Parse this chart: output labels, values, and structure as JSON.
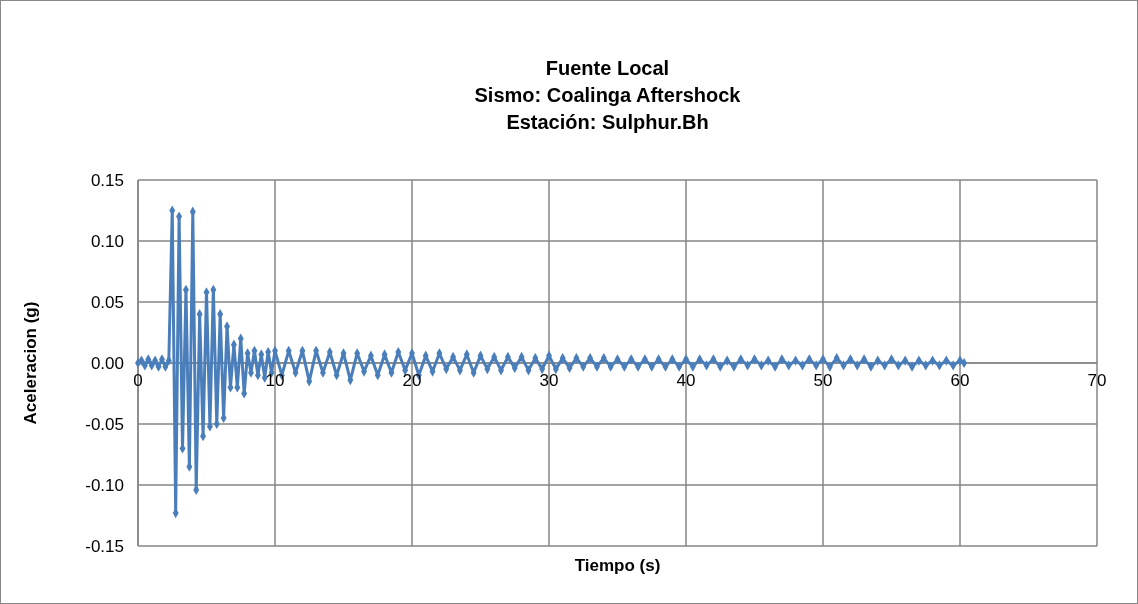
{
  "chart_data": {
    "type": "line",
    "title": "Fuente Local\nSismo: Coalinga Aftershock\nEstación: Sulphur.Bh",
    "xlabel": "Tiempo (s)",
    "ylabel": "Aceleracion (g)",
    "xlim": [
      0,
      70
    ],
    "xticks": [
      0,
      10,
      20,
      30,
      40,
      50,
      60,
      70
    ],
    "ylim": [
      -0.15,
      0.15
    ],
    "yticks": [
      {
        "value": -0.15,
        "label": "-0.15"
      },
      {
        "value": -0.1,
        "label": "-0.10"
      },
      {
        "value": -0.05,
        "label": "-0.05"
      },
      {
        "value": 0,
        "label": "0.00"
      },
      {
        "value": 0.05,
        "label": "0.05"
      },
      {
        "value": 0.1,
        "label": "0.10"
      },
      {
        "value": 0.15,
        "label": "0.15"
      }
    ],
    "grid": true,
    "marker": "diamond",
    "line_style": "solid",
    "series": [
      {
        "color": "#4a7ebb",
        "x": [
          0,
          0.25,
          0.5,
          0.75,
          1,
          1.25,
          1.5,
          1.75,
          2,
          2.25,
          2.5,
          2.75,
          3,
          3.25,
          3.5,
          3.75,
          4,
          4.25,
          4.5,
          4.75,
          5,
          5.25,
          5.5,
          5.75,
          6,
          6.25,
          6.5,
          6.75,
          7,
          7.25,
          7.5,
          7.75,
          8,
          8.25,
          8.5,
          8.75,
          9,
          9.25,
          9.5,
          9.75,
          10,
          10.5,
          11,
          11.5,
          12,
          12.5,
          13,
          13.5,
          14,
          14.5,
          15,
          15.5,
          16,
          16.5,
          17,
          17.5,
          18,
          18.5,
          19,
          19.5,
          20,
          20.5,
          21,
          21.5,
          22,
          22.5,
          23,
          23.5,
          24,
          24.5,
          25,
          25.5,
          26,
          26.5,
          27,
          27.5,
          28,
          28.5,
          29,
          29.5,
          30,
          30.5,
          31,
          31.5,
          32,
          32.5,
          33,
          33.5,
          34,
          34.5,
          35,
          35.5,
          36,
          36.5,
          37,
          37.5,
          38,
          38.5,
          39,
          39.5,
          40,
          40.5,
          41,
          41.5,
          42,
          42.5,
          43,
          43.5,
          44,
          44.5,
          45,
          45.5,
          46,
          46.5,
          47,
          47.5,
          48,
          48.5,
          49,
          49.5,
          50,
          50.5,
          51,
          51.5,
          52,
          52.5,
          53,
          53.5,
          54,
          54.5,
          55,
          55.5,
          56,
          56.5,
          57,
          57.5,
          58,
          58.5,
          59,
          59.5,
          60,
          60.3
        ],
        "values": [
          0,
          0.002,
          -0.002,
          0.003,
          -0.002,
          0.002,
          -0.003,
          0.003,
          -0.003,
          0.002,
          0.125,
          -0.123,
          0.12,
          -0.07,
          0.06,
          -0.085,
          0.124,
          -0.104,
          0.04,
          -0.06,
          0.058,
          -0.052,
          0.06,
          -0.05,
          0.04,
          -0.045,
          0.03,
          -0.02,
          0.015,
          -0.02,
          0.02,
          -0.025,
          0.008,
          -0.008,
          0.01,
          -0.01,
          0.007,
          -0.012,
          0.009,
          -0.008,
          0.01,
          -0.01,
          0.01,
          -0.008,
          0.01,
          -0.015,
          0.01,
          -0.008,
          0.009,
          -0.01,
          0.008,
          -0.014,
          0.008,
          -0.007,
          0.006,
          -0.01,
          0.007,
          -0.008,
          0.009,
          -0.006,
          0.008,
          -0.01,
          0.006,
          -0.007,
          0.008,
          -0.005,
          0.005,
          -0.006,
          0.007,
          -0.008,
          0.006,
          -0.005,
          0.005,
          -0.006,
          0.005,
          -0.004,
          0.005,
          -0.006,
          0.004,
          -0.005,
          0.006,
          -0.005,
          0.004,
          -0.004,
          0.004,
          -0.003,
          0.004,
          -0.003,
          0.004,
          -0.003,
          0.003,
          -0.003,
          0.003,
          -0.003,
          0.003,
          -0.003,
          0.003,
          -0.003,
          0.003,
          -0.003,
          0.003,
          -0.003,
          0.003,
          -0.002,
          0.003,
          -0.003,
          0.002,
          -0.003,
          0.003,
          -0.002,
          0.003,
          -0.002,
          0.002,
          -0.003,
          0.003,
          -0.002,
          0.002,
          -0.002,
          0.003,
          -0.002,
          0.003,
          -0.003,
          0.004,
          -0.002,
          0.003,
          -0.002,
          0.003,
          -0.003,
          0.002,
          -0.002,
          0.003,
          -0.002,
          0.002,
          -0.003,
          0.002,
          -0.002,
          0.002,
          -0.002,
          0.002,
          -0.002,
          0.002,
          0
        ]
      }
    ]
  }
}
